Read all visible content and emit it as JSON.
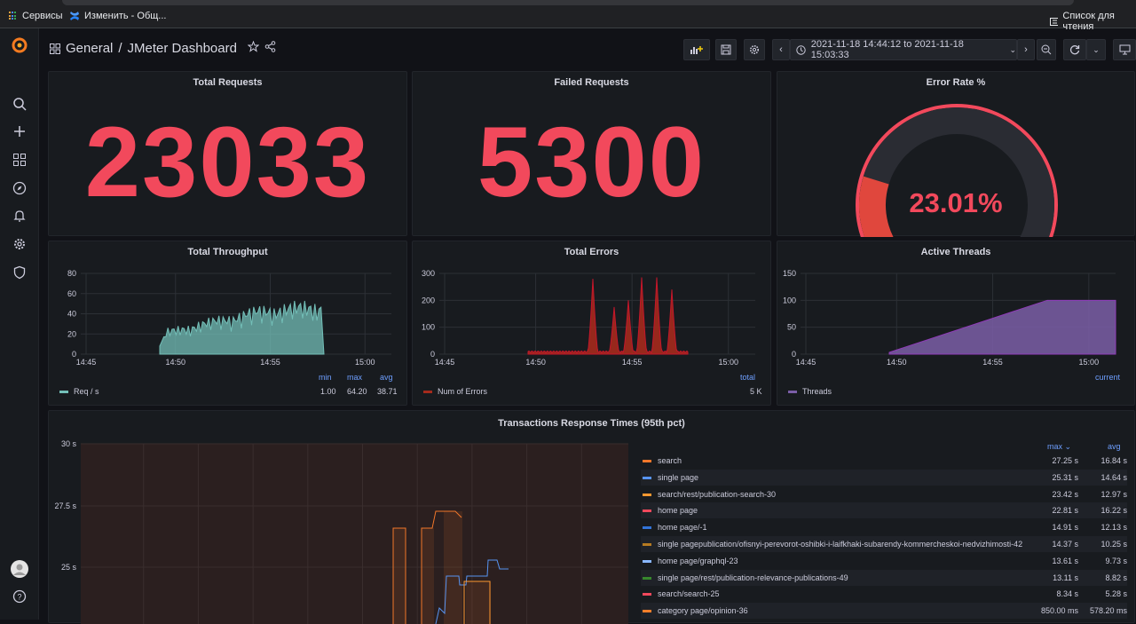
{
  "browser": {
    "bookmarks": [
      {
        "label": "Сервисы"
      },
      {
        "label": "Изменить - Общ..."
      }
    ],
    "reading_list": "Список для чтения"
  },
  "breadcrumb": {
    "folder": "General",
    "separator": "/",
    "dashboard": "JMeter Dashboard"
  },
  "time_range": {
    "label": "2021-11-18 14:44:12 to 2021-11-18 15:03:33"
  },
  "panels": {
    "total_requests": {
      "title": "Total Requests",
      "value": "23033"
    },
    "failed_requests": {
      "title": "Failed Requests",
      "value": "5300"
    },
    "error_rate": {
      "title": "Error Rate %",
      "value": "23.01%",
      "fraction": 0.2301
    }
  },
  "chart_data": [
    {
      "type": "area",
      "title": "Total Throughput",
      "x_ticks": [
        "14:45",
        "14:50",
        "14:55",
        "15:00"
      ],
      "y_ticks": [
        "0",
        "20",
        "40",
        "60",
        "80"
      ],
      "ylim": [
        0,
        80
      ],
      "legend_headers": [
        "min",
        "max",
        "avg"
      ],
      "series": [
        {
          "name": "Req / s",
          "color": "#73bfb8",
          "stats": [
            "1.00",
            "64.20",
            "38.71"
          ]
        }
      ]
    },
    {
      "type": "area",
      "title": "Total Errors",
      "x_ticks": [
        "14:45",
        "14:50",
        "14:55",
        "15:00"
      ],
      "y_ticks": [
        "0",
        "100",
        "200",
        "300"
      ],
      "ylim": [
        0,
        300
      ],
      "legend_headers": [
        "total"
      ],
      "series": [
        {
          "name": "Num of Errors",
          "color": "#a52a1c",
          "stats": [
            "5 K"
          ]
        }
      ]
    },
    {
      "type": "area",
      "title": "Active Threads",
      "x_ticks": [
        "14:45",
        "14:50",
        "14:55",
        "15:00"
      ],
      "y_ticks": [
        "0",
        "50",
        "100",
        "150"
      ],
      "ylim": [
        0,
        150
      ],
      "legend_headers": [
        "current"
      ],
      "series": [
        {
          "name": "Threads",
          "color": "#7b5ea7",
          "stats": [
            ""
          ]
        }
      ]
    },
    {
      "type": "line",
      "title": "Transactions Response Times (95th pct)",
      "y_ticks": [
        "30 s",
        "27.5 s",
        "25 s"
      ],
      "legend_headers": [
        "max",
        "avg"
      ],
      "series": [
        {
          "name": "search",
          "color": "#f2772a",
          "max": "27.25 s",
          "avg": "16.84 s"
        },
        {
          "name": "single page",
          "color": "#5794f2",
          "max": "25.31 s",
          "avg": "14.64 s"
        },
        {
          "name": "search/rest/publication-search-30",
          "color": "#ff9830",
          "max": "23.42 s",
          "avg": "12.97 s"
        },
        {
          "name": "home page",
          "color": "#f2495c",
          "max": "22.81 s",
          "avg": "16.22 s"
        },
        {
          "name": "home page/-1",
          "color": "#3274d9",
          "max": "14.91 s",
          "avg": "12.13 s"
        },
        {
          "name": "single pagepublication/ofisnyi-perevorot-oshibki-i-laifkhaki-subarendy-kommercheskoi-nedvizhimosti-42",
          "color": "#b77b21",
          "max": "14.37 s",
          "avg": "10.25 s"
        },
        {
          "name": "home page/graphql-23",
          "color": "#8ab8ff",
          "max": "13.61 s",
          "avg": "9.73 s"
        },
        {
          "name": "single page/rest/publication-relevance-publications-49",
          "color": "#37872d",
          "max": "13.11 s",
          "avg": "8.82 s"
        },
        {
          "name": "search/search-25",
          "color": "#f2495c",
          "max": "8.34 s",
          "avg": "5.28 s"
        },
        {
          "name": "category page/opinion-36",
          "color": "#ff7f2a",
          "max": "850.00 ms",
          "avg": "578.20 ms"
        }
      ]
    }
  ]
}
